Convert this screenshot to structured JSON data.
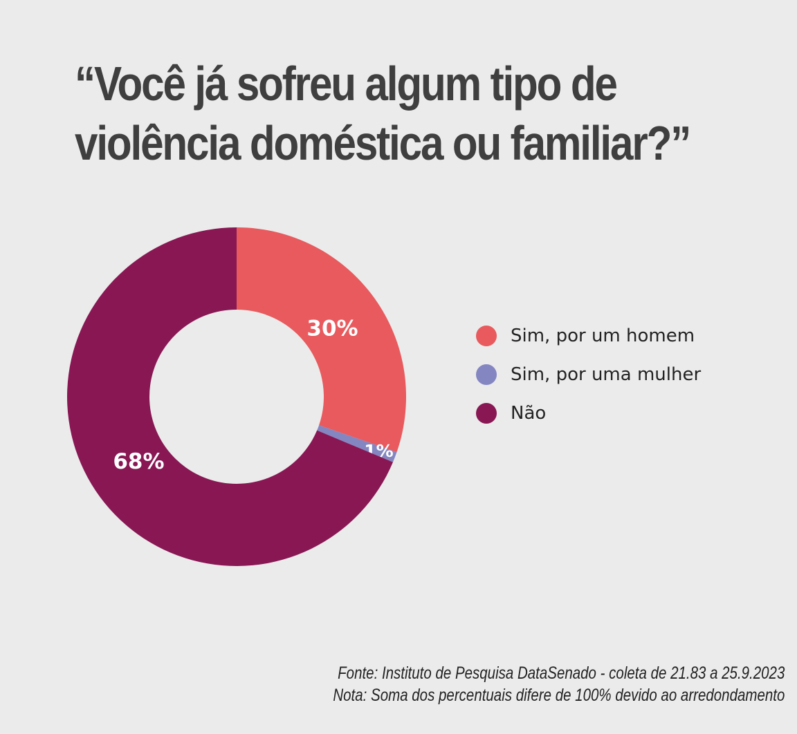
{
  "title": {
    "line1": "“Você já sofreu algum tipo de",
    "line2": "violência doméstica ou familiar?”"
  },
  "chart_data": {
    "type": "pie",
    "variant": "donut",
    "categories": [
      "Sim, por um homem",
      "Sim, por uma mulher",
      "Não"
    ],
    "values": [
      30,
      1,
      68
    ],
    "labels": [
      "30%",
      "1%",
      "68%"
    ],
    "colors": [
      "#e85a5d",
      "#8486c2",
      "#881754"
    ],
    "legend_position": "right"
  },
  "legend": [
    {
      "label": "Sim, por um homem",
      "color": "#e85a5d"
    },
    {
      "label": "Sim, por uma mulher",
      "color": "#8486c2"
    },
    {
      "label": "Não",
      "color": "#881754"
    }
  ],
  "footer": {
    "source": "Fonte: Instituto de Pesquisa DataSenado - coleta de 21.83 a 25.9.2023",
    "note": "Nota: Soma dos percentuais difere de 100% devido ao arredondamento"
  }
}
